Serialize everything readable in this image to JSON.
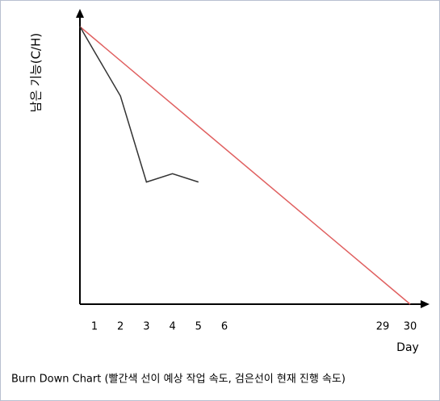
{
  "chart_data": {
    "type": "line",
    "caption": "Burn Down Chart (빨간색 선이 예상 작업 속도, 검은선이 현재 진행 속도)",
    "y_label": "남은 기능(C/H)",
    "x_label": "Day",
    "xlim": [
      0,
      30
    ],
    "ylim": [
      0,
      100
    ],
    "xticks": [
      1,
      2,
      3,
      4,
      5,
      6,
      29,
      30
    ],
    "grid": false,
    "series": [
      {
        "color": "#e06060",
        "x": [
          0,
          30
        ],
        "values": [
          100,
          0
        ]
      },
      {
        "color": "#333333",
        "x": [
          0,
          1,
          2,
          3,
          4,
          5
        ],
        "values": [
          100,
          91,
          75,
          44,
          47,
          44
        ]
      }
    ]
  }
}
